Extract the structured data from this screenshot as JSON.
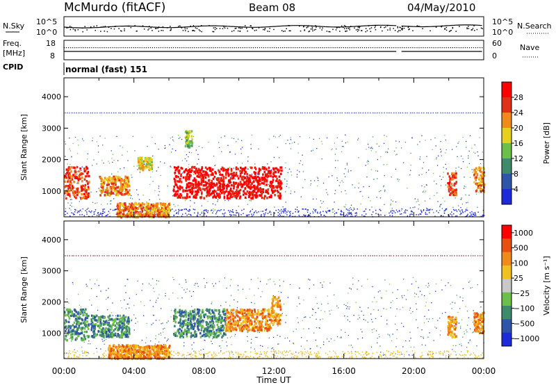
{
  "header": {
    "station": "McMurdo (fitACF)",
    "beam": "Beam 08",
    "date": "04/May/2010",
    "cpid_label": "CPID",
    "cpid_value": "normal (fast) 151"
  },
  "noise_panel": {
    "left_label": "N.Sky",
    "right_label": "N.Search",
    "left_ticks": [
      "10^5",
      "10^0"
    ],
    "right_ticks": [
      "10^5",
      "10^0"
    ]
  },
  "freq_panel": {
    "left_label_1": "Freq.",
    "left_label_2": "[MHz]",
    "right_label": "Nave",
    "left_ticks": [
      "18",
      "8"
    ],
    "right_ticks": [
      "60",
      "0"
    ]
  },
  "chart_data": [
    {
      "type": "heatmap",
      "panel": "power",
      "ylabel": "Slant Range [km]",
      "yticks": [
        "1000",
        "2000",
        "3000",
        "4000"
      ],
      "ylim": [
        180,
        4600
      ],
      "xlim_hours": [
        0,
        24
      ],
      "colorbar_label": "Power [dB]",
      "colorbar_ticks": [
        "4",
        "8",
        "12",
        "16",
        "20",
        "24",
        "28"
      ],
      "colors": [
        "#1f2bd8",
        "#2f55a8",
        "#3e8a6a",
        "#6cc04a",
        "#e6d01e",
        "#f08a1a",
        "#e03018",
        "#ff0000"
      ],
      "regions": [
        {
          "t0": 0.0,
          "t1": 1.4,
          "r0": 800,
          "r1": 1800,
          "level": 6
        },
        {
          "t0": 2.0,
          "t1": 3.7,
          "r0": 900,
          "r1": 1500,
          "level": 5
        },
        {
          "t0": 3.0,
          "t1": 6.0,
          "r0": 200,
          "r1": 650,
          "level": 5
        },
        {
          "t0": 4.2,
          "t1": 5.0,
          "r0": 1700,
          "r1": 2100,
          "level": 4
        },
        {
          "t0": 6.2,
          "t1": 12.4,
          "r0": 800,
          "r1": 1800,
          "level": 7
        },
        {
          "t0": 6.9,
          "t1": 7.3,
          "r0": 2400,
          "r1": 2950,
          "level": 3
        },
        {
          "t0": 21.9,
          "t1": 22.4,
          "r0": 900,
          "r1": 1600,
          "level": 6
        },
        {
          "t0": 23.4,
          "t1": 24.0,
          "r0": 1000,
          "r1": 1800,
          "level": 5
        }
      ]
    },
    {
      "type": "heatmap",
      "panel": "velocity",
      "ylabel": "Slant Range [km]",
      "yticks": [
        "1000",
        "2000",
        "3000",
        "4000"
      ],
      "ylim": [
        180,
        4600
      ],
      "xlabel": "Time UT",
      "xticks": [
        "00:00",
        "04:00",
        "08:00",
        "12:00",
        "16:00",
        "20:00",
        "00:00"
      ],
      "xlim_hours": [
        0,
        24
      ],
      "colorbar_label": "Velocity [m s⁻¹]",
      "colorbar_ticks": [
        "1000",
        "500",
        "100",
        "25",
        "−25",
        "−100",
        "−500",
        "−1000"
      ],
      "colors": [
        "#1f2bd8",
        "#2f55a8",
        "#3e8a6a",
        "#6cc04a",
        "#c8c8c8",
        "#f0c020",
        "#f08a1a",
        "#e85010",
        "#ff0000"
      ],
      "regions": [
        {
          "t0": 0.0,
          "t1": 1.4,
          "r0": 800,
          "r1": 1800,
          "level": 2
        },
        {
          "t0": 1.5,
          "t1": 3.7,
          "r0": 900,
          "r1": 1600,
          "level": 2
        },
        {
          "t0": 2.5,
          "t1": 6.0,
          "r0": 200,
          "r1": 650,
          "level": 6
        },
        {
          "t0": 6.2,
          "t1": 9.2,
          "r0": 900,
          "r1": 1800,
          "level": 2
        },
        {
          "t0": 9.2,
          "t1": 11.8,
          "r0": 1100,
          "r1": 1800,
          "level": 6
        },
        {
          "t0": 11.8,
          "t1": 12.4,
          "r0": 1300,
          "r1": 2200,
          "level": 6
        },
        {
          "t0": 21.9,
          "t1": 22.4,
          "r0": 900,
          "r1": 1600,
          "level": 6
        },
        {
          "t0": 23.4,
          "t1": 24.0,
          "r0": 1000,
          "r1": 1700,
          "level": 6
        }
      ]
    }
  ]
}
